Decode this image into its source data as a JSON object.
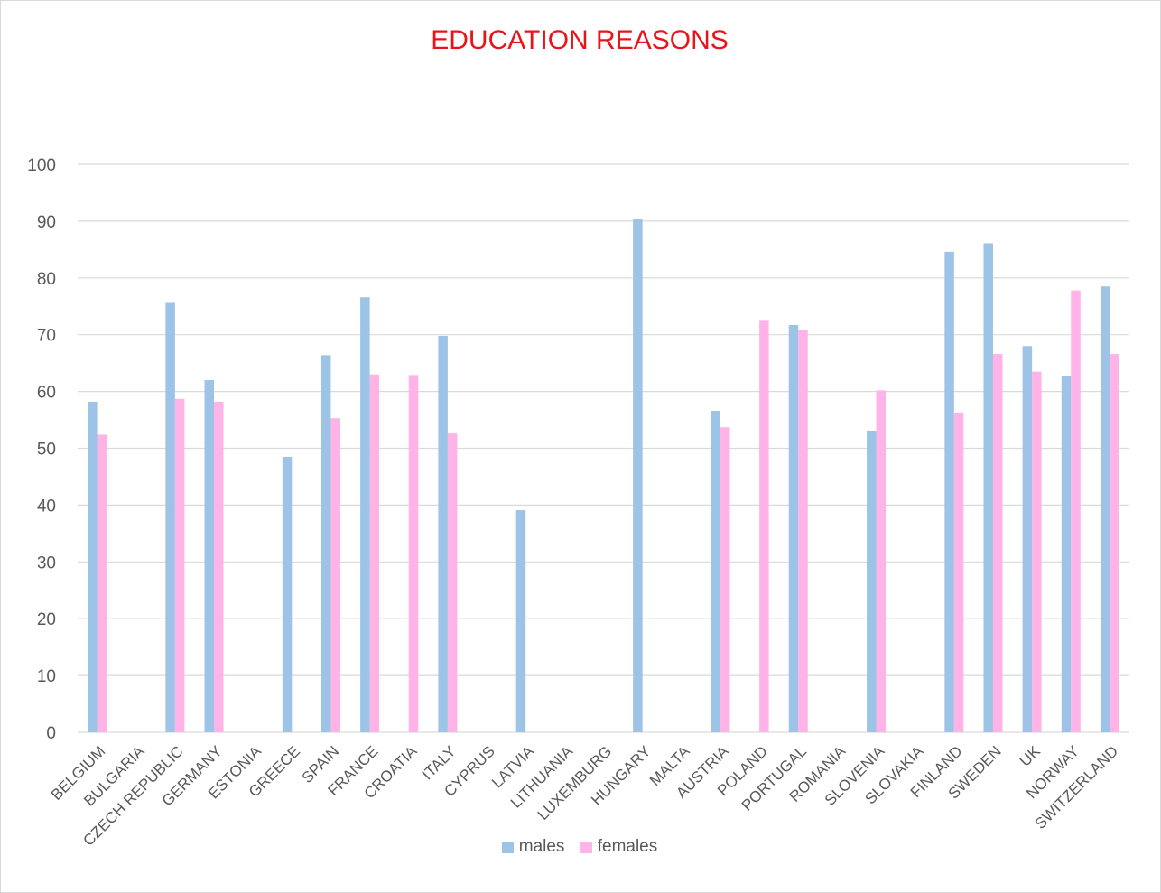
{
  "chart_data": {
    "type": "bar",
    "title": "EDUCATION REASONS",
    "xlabel": "",
    "ylabel": "",
    "ylim": [
      0,
      100
    ],
    "yticks": [
      0,
      10,
      20,
      30,
      40,
      50,
      60,
      70,
      80,
      90,
      100
    ],
    "grid": true,
    "legend_position": "bottom",
    "categories": [
      "BELGIUM",
      "BULGARIA",
      "CZECH REPUBLIC",
      "GERMANY",
      "ESTONIA",
      "GREECE",
      "SPAIN",
      "FRANCE",
      "CROATIA",
      "ITALY",
      "CYPRUS",
      "LATVIA",
      "LITHUANIA",
      "LUXEMBURG",
      "HUNGARY",
      "MALTA",
      "AUSTRIA",
      "POLAND",
      "PORTUGAL",
      "ROMANIA",
      "SLOVENIA",
      "SLOVAKIA",
      "FINLAND",
      "SWEDEN",
      "UK",
      "NORWAY",
      "SWITZERLAND"
    ],
    "series": [
      {
        "name": "males",
        "color": "#9dc3e6",
        "values": [
          58.2,
          null,
          75.6,
          62.0,
          null,
          48.5,
          66.4,
          76.6,
          null,
          69.8,
          null,
          39.1,
          null,
          null,
          90.3,
          null,
          56.6,
          null,
          71.7,
          null,
          53.1,
          null,
          84.6,
          86.1,
          68.0,
          62.8,
          78.5
        ]
      },
      {
        "name": "females",
        "color": "#ffb3e6",
        "values": [
          52.4,
          null,
          58.7,
          58.2,
          null,
          null,
          55.3,
          63.0,
          62.9,
          52.6,
          null,
          null,
          null,
          null,
          null,
          null,
          53.7,
          72.6,
          70.8,
          null,
          60.2,
          null,
          56.3,
          66.6,
          63.5,
          77.8,
          66.6
        ]
      }
    ]
  }
}
